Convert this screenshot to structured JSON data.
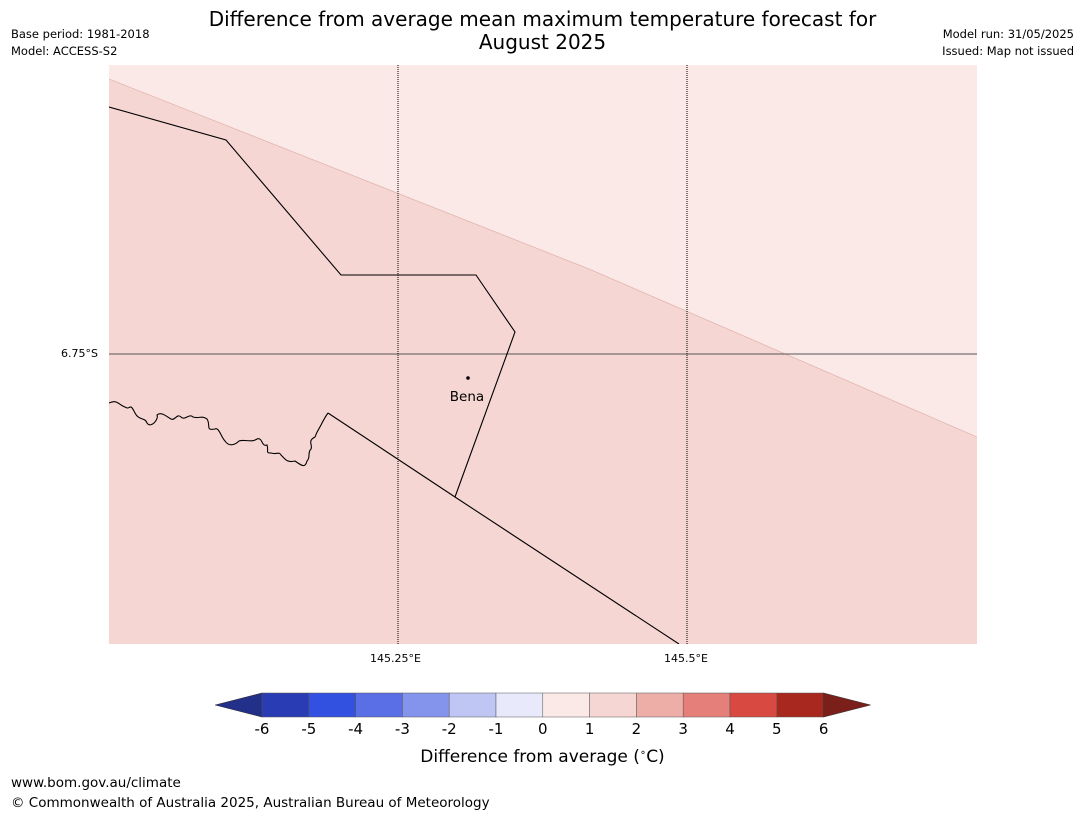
{
  "header": {
    "title_line1": "Difference from average mean maximum temperature forecast for",
    "title_line2": "August 2025",
    "base_period": "Base period: 1981-2018",
    "model": "Model: ACCESS-S2",
    "model_run": "Model run: 31/05/2025",
    "issued": "Issued: Map not issued"
  },
  "map": {
    "lat_label": "6.75°S",
    "lon_labels": [
      "145.25°E",
      "145.5°E"
    ],
    "place": "Bena",
    "colors": {
      "zone_1_2": "#f5d6d3",
      "zone_0_1": "#fbe9e7",
      "graticule": "#000000",
      "boundary": "#000000"
    }
  },
  "colorbar": {
    "label": "Difference from average ($^\\circ$C)",
    "label_text": "Difference from average (",
    "label_deg": "∘",
    "label_unit": "C)",
    "ticks": [
      "-6",
      "-5",
      "-4",
      "-3",
      "-2",
      "-1",
      "0",
      "1",
      "2",
      "3",
      "4",
      "5",
      "6"
    ],
    "colors": [
      "#233089",
      "#2a3cb4",
      "#3351e0",
      "#5a6ee6",
      "#8494ec",
      "#c0c6f4",
      "#e8eafb",
      "#fbe9e7",
      "#f5d6d3",
      "#edaea8",
      "#e57f7a",
      "#d84a41",
      "#a8281f",
      "#7a1f1a"
    ]
  },
  "footer": {
    "url": "www.bom.gov.au/climate",
    "copyright": "© Commonwealth of Australia 2025, Australian Bureau of Meteorology"
  }
}
